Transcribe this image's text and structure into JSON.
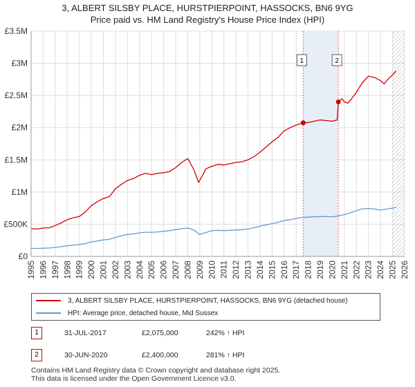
{
  "title_line1": "3, ALBERT SILSBY PLACE, HURSTPIERPOINT, HASSOCKS, BN6 9YG",
  "title_line2": "Price paid vs. HM Land Registry's House Price Index (HPI)",
  "colors": {
    "property": "#cc0000",
    "hpi": "#6699cc",
    "shade": "#e8eef8",
    "grid": "#dddddd",
    "marker_line": "#e06080"
  },
  "chart_data": {
    "type": "line",
    "xlim": [
      1995,
      2026
    ],
    "ylim": [
      0,
      3500000
    ],
    "y_ticks": [
      {
        "value": 0,
        "label": "£0"
      },
      {
        "value": 500000,
        "label": "£500K"
      },
      {
        "value": 1000000,
        "label": "£1M"
      },
      {
        "value": 1500000,
        "label": "£1.5M"
      },
      {
        "value": 2000000,
        "label": "£2M"
      },
      {
        "value": 2500000,
        "label": "£2.5M"
      },
      {
        "value": 3000000,
        "label": "£3M"
      },
      {
        "value": 3500000,
        "label": "£3.5M"
      }
    ],
    "x_ticks": [
      "1995",
      "1996",
      "1997",
      "1998",
      "1999",
      "2000",
      "2001",
      "2002",
      "2003",
      "2004",
      "2005",
      "2006",
      "2007",
      "2008",
      "2009",
      "2010",
      "2011",
      "2012",
      "2013",
      "2014",
      "2015",
      "2016",
      "2017",
      "2018",
      "2019",
      "2020",
      "2021",
      "2022",
      "2023",
      "2024",
      "2025",
      "2026"
    ],
    "grid": true,
    "shaded_range": [
      2017.58,
      2020.5
    ],
    "future_hatch_from": 2025.0,
    "series": [
      {
        "name": "3, ALBERT SILSBY PLACE, HURSTPIERPOINT, HASSOCKS, BN6 9YG (detached house)",
        "color": "#cc0000",
        "x": [
          1995.0,
          1995.5,
          1996.0,
          1996.5,
          1997.0,
          1997.5,
          1998.0,
          1998.5,
          1999.0,
          1999.5,
          2000.0,
          2000.5,
          2001.0,
          2001.5,
          2002.0,
          2002.5,
          2003.0,
          2003.5,
          2004.0,
          2004.5,
          2005.0,
          2005.5,
          2006.0,
          2006.5,
          2007.0,
          2007.5,
          2008.0,
          2008.5,
          2008.9,
          2009.2,
          2009.5,
          2010.0,
          2010.5,
          2011.0,
          2011.5,
          2012.0,
          2012.5,
          2013.0,
          2013.5,
          2014.0,
          2014.5,
          2015.0,
          2015.5,
          2016.0,
          2016.5,
          2017.0,
          2017.58,
          2018.0,
          2018.5,
          2019.0,
          2019.5,
          2020.0,
          2020.4,
          2020.5,
          2020.8,
          2021.0,
          2021.3,
          2021.6,
          2022.0,
          2022.5,
          2023.0,
          2023.5,
          2024.0,
          2024.3,
          2024.6,
          2025.0,
          2025.3
        ],
        "y": [
          430000,
          425000,
          440000,
          445000,
          480000,
          520000,
          570000,
          600000,
          620000,
          690000,
          790000,
          850000,
          900000,
          930000,
          1050000,
          1120000,
          1180000,
          1210000,
          1260000,
          1290000,
          1270000,
          1290000,
          1300000,
          1320000,
          1380000,
          1460000,
          1520000,
          1350000,
          1150000,
          1250000,
          1360000,
          1400000,
          1430000,
          1420000,
          1440000,
          1460000,
          1470000,
          1500000,
          1550000,
          1620000,
          1700000,
          1780000,
          1850000,
          1950000,
          2000000,
          2040000,
          2075000,
          2080000,
          2100000,
          2120000,
          2110000,
          2100000,
          2120000,
          2400000,
          2450000,
          2400000,
          2380000,
          2450000,
          2550000,
          2700000,
          2800000,
          2780000,
          2730000,
          2680000,
          2750000,
          2820000,
          2880000
        ]
      },
      {
        "name": "HPI: Average price, detached house, Mid Sussex",
        "color": "#6699cc",
        "x": [
          1995.0,
          1995.5,
          1996.0,
          1996.5,
          1997.0,
          1997.5,
          1998.0,
          1998.5,
          1999.0,
          1999.5,
          2000.0,
          2000.5,
          2001.0,
          2001.5,
          2002.0,
          2002.5,
          2003.0,
          2003.5,
          2004.0,
          2004.5,
          2005.0,
          2005.5,
          2006.0,
          2006.5,
          2007.0,
          2007.5,
          2008.0,
          2008.5,
          2009.0,
          2009.5,
          2010.0,
          2010.5,
          2011.0,
          2011.5,
          2012.0,
          2012.5,
          2013.0,
          2013.5,
          2014.0,
          2014.5,
          2015.0,
          2015.5,
          2016.0,
          2016.5,
          2017.0,
          2017.58,
          2018.0,
          2018.5,
          2019.0,
          2019.5,
          2020.0,
          2020.5,
          2021.0,
          2021.5,
          2022.0,
          2022.5,
          2023.0,
          2023.5,
          2024.0,
          2024.5,
          2025.0,
          2025.3
        ],
        "y": [
          125000,
          124000,
          127000,
          130000,
          140000,
          150000,
          165000,
          175000,
          185000,
          200000,
          225000,
          240000,
          255000,
          265000,
          295000,
          320000,
          340000,
          350000,
          365000,
          375000,
          375000,
          380000,
          390000,
          400000,
          415000,
          430000,
          440000,
          410000,
          340000,
          370000,
          400000,
          405000,
          400000,
          405000,
          410000,
          415000,
          425000,
          445000,
          470000,
          490000,
          510000,
          530000,
          555000,
          570000,
          590000,
          607000,
          610000,
          615000,
          620000,
          618000,
          615000,
          630000,
          650000,
          675000,
          710000,
          740000,
          745000,
          735000,
          720000,
          735000,
          750000,
          760000
        ]
      }
    ],
    "sales": [
      {
        "label": "1",
        "x": 2017.58,
        "y": 2075000
      },
      {
        "label": "2",
        "x": 2020.5,
        "y": 2400000
      }
    ]
  },
  "legend": {
    "property_label": "3, ALBERT SILSBY PLACE, HURSTPIERPOINT, HASSOCKS, BN6 9YG (detached house)",
    "hpi_label": "HPI: Average price, detached house, Mid Sussex"
  },
  "sales_table": [
    {
      "badge": "1",
      "date": "31-JUL-2017",
      "price": "£2,075,000",
      "hpi": "242% ↑ HPI"
    },
    {
      "badge": "2",
      "date": "30-JUN-2020",
      "price": "£2,400,000",
      "hpi": "281% ↑ HPI"
    }
  ],
  "footer_line1": "Contains HM Land Registry data © Crown copyright and database right 2025.",
  "footer_line2": "This data is licensed under the Open Government Licence v3.0."
}
